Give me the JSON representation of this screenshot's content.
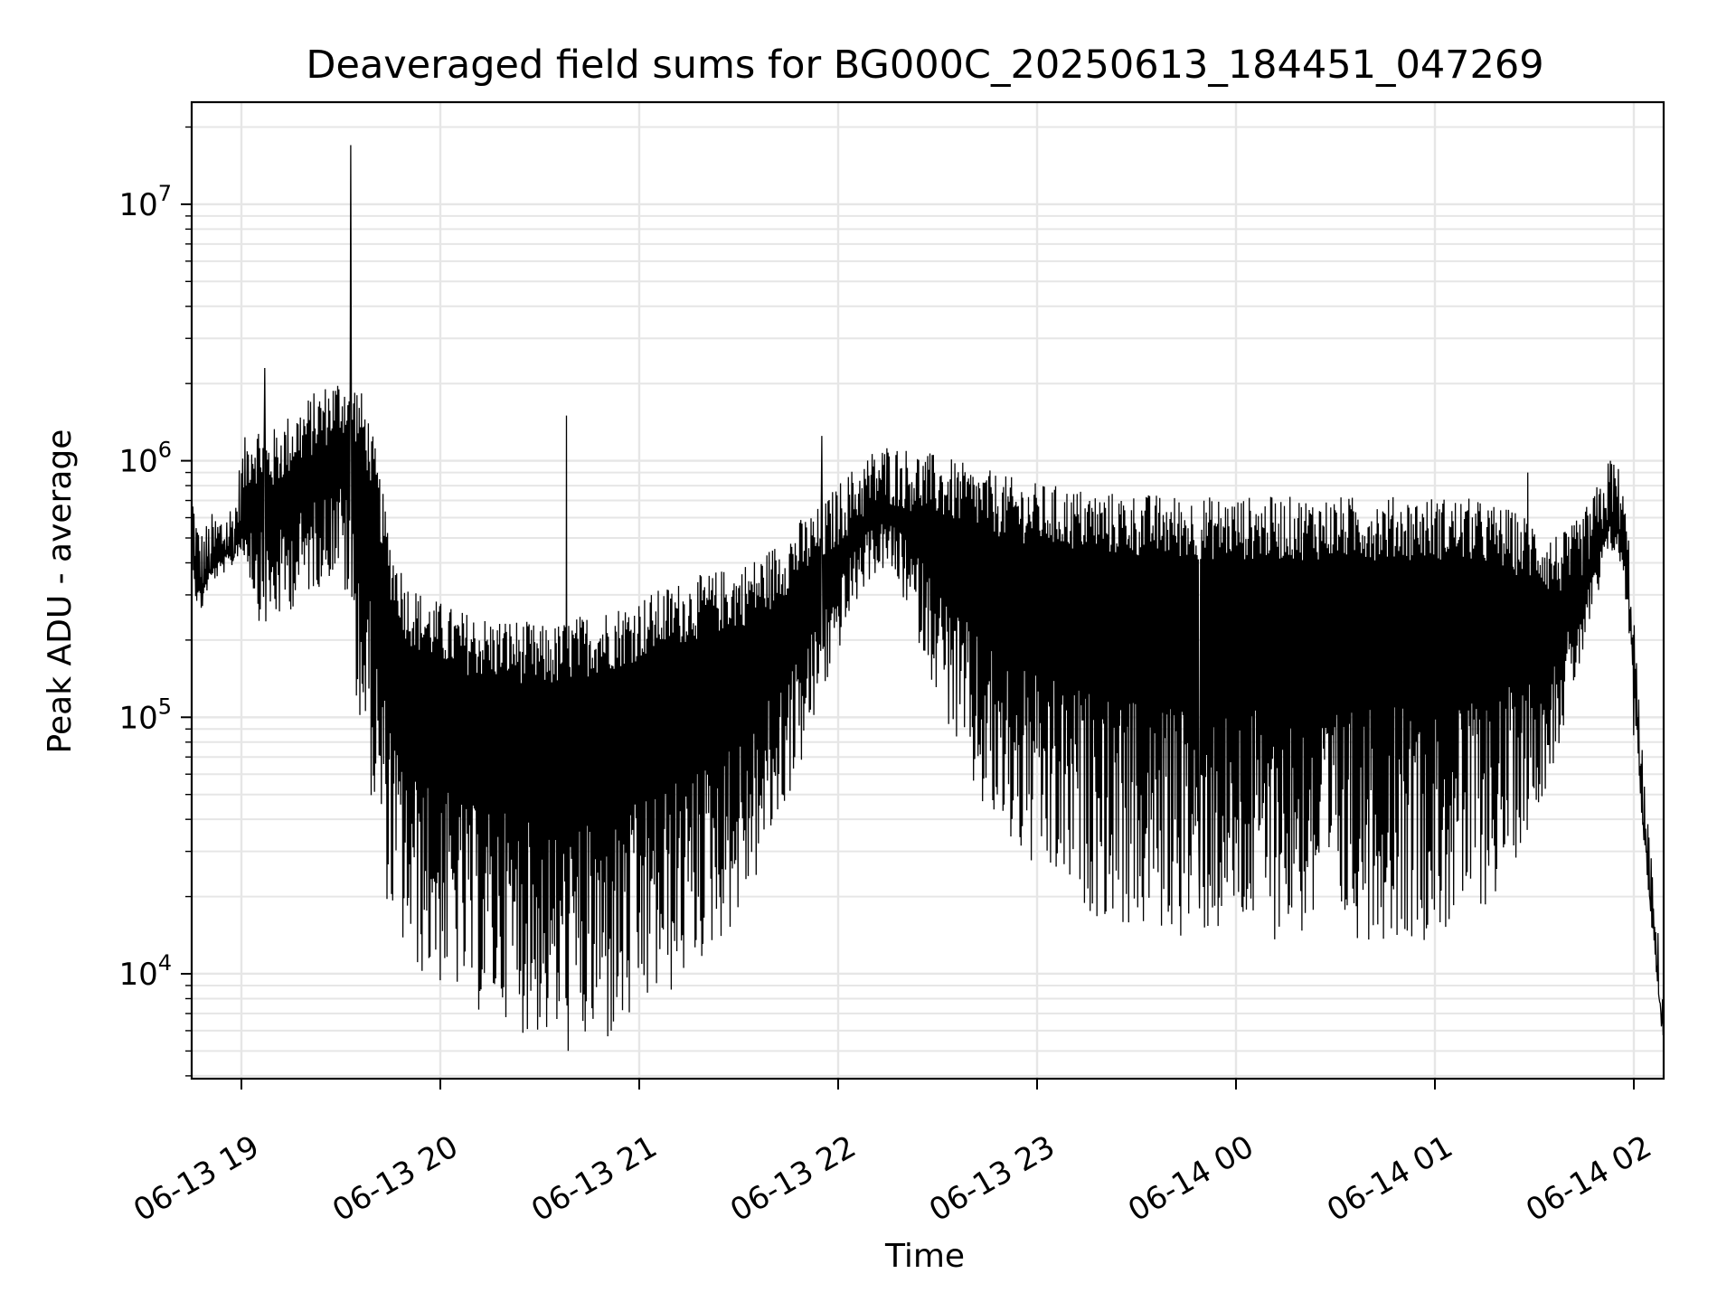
{
  "chart_data": {
    "type": "line",
    "title": "Deaveraged field sums for BG000C_20250613_184451_047269",
    "xlabel": "Time",
    "ylabel": "Peak ADU - average",
    "y_scale": "log",
    "ylim": [
      3900,
      25000000
    ],
    "xlim": [
      "06-13 18:45",
      "06-14 02:09"
    ],
    "grid": true,
    "line_color": "#000000",
    "grid_color": "#e6e6e6",
    "x_ticks": [
      {
        "t": "06-13 19:00",
        "label": "06-13 19"
      },
      {
        "t": "06-13 20:00",
        "label": "06-13 20"
      },
      {
        "t": "06-13 21:00",
        "label": "06-13 21"
      },
      {
        "t": "06-13 22:00",
        "label": "06-13 22"
      },
      {
        "t": "06-13 23:00",
        "label": "06-13 23"
      },
      {
        "t": "06-14 00:00",
        "label": "06-14 00"
      },
      {
        "t": "06-14 01:00",
        "label": "06-14 01"
      },
      {
        "t": "06-14 02:00",
        "label": "06-14 02"
      }
    ],
    "y_ticks": [
      {
        "value": 10000,
        "base": "10",
        "exp": "4"
      },
      {
        "value": 100000,
        "base": "10",
        "exp": "5"
      },
      {
        "value": 1000000,
        "base": "10",
        "exp": "6"
      },
      {
        "value": 10000000,
        "base": "10",
        "exp": "7"
      }
    ],
    "series": [
      {
        "x": [
          "06-13 18:45",
          "06-13 18:46",
          "06-13 18:47",
          "06-13 18:48",
          "06-13 18:49",
          "06-13 18:50",
          "06-13 18:51",
          "06-13 18:52",
          "06-13 18:53",
          "06-13 18:54",
          "06-13 18:55",
          "06-13 18:56",
          "06-13 18:57",
          "06-13 18:58",
          "06-13 18:59",
          "06-13 19:00",
          "06-13 19:01",
          "06-13 19:02",
          "06-13 19:03",
          "06-13 19:05",
          "06-13 19:07",
          "06-13 19:08",
          "06-13 19:10",
          "06-13 19:12",
          "06-13 19:14",
          "06-13 19:16",
          "06-13 19:18",
          "06-13 19:20",
          "06-13 19:22",
          "06-13 19:24",
          "06-13 19:26",
          "06-13 19:28",
          "06-13 19:30",
          "06-13 19:32",
          "06-13 19:34",
          "06-13 19:35",
          "06-13 19:37",
          "06-13 19:39",
          "06-13 19:41",
          "06-13 19:43",
          "06-13 19:45",
          "06-13 19:48",
          "06-13 19:50",
          "06-13 19:55",
          "06-13 20:00",
          "06-13 20:05",
          "06-13 20:10",
          "06-13 20:15",
          "06-13 20:20",
          "06-13 20:25",
          "06-13 20:30",
          "06-13 20:35",
          "06-13 20:40",
          "06-13 20:45",
          "06-13 20:50",
          "06-13 20:55",
          "06-13 21:00",
          "06-13 21:05",
          "06-13 21:10",
          "06-13 21:15",
          "06-13 21:20",
          "06-13 21:25",
          "06-13 21:30",
          "06-13 21:35",
          "06-13 21:40",
          "06-13 21:45",
          "06-13 21:50",
          "06-13 21:55",
          "06-13 22:00",
          "06-13 22:05",
          "06-13 22:10",
          "06-13 22:15",
          "06-13 22:20",
          "06-13 22:25",
          "06-13 22:30",
          "06-13 22:35",
          "06-13 22:40",
          "06-13 22:45",
          "06-13 22:50",
          "06-13 22:55",
          "06-13 23:00",
          "06-13 23:10",
          "06-13 23:20",
          "06-13 23:30",
          "06-13 23:40",
          "06-13 23:50",
          "06-14 00:00",
          "06-14 00:10",
          "06-14 00:20",
          "06-14 00:30",
          "06-14 00:40",
          "06-14 00:50",
          "06-14 01:00",
          "06-14 01:10",
          "06-14 01:20",
          "06-14 01:30",
          "06-14 01:35",
          "06-14 01:40",
          "06-14 01:45",
          "06-14 01:50",
          "06-14 01:52",
          "06-14 01:54",
          "06-14 01:56",
          "06-14 01:58",
          "06-14 02:00",
          "06-14 02:02",
          "06-14 02:04",
          "06-14 02:06",
          "06-14 02:08",
          "06-14 02:09"
        ],
        "base": [
          600000,
          450000,
          380000,
          360000,
          380000,
          400000,
          420000,
          430000,
          440000,
          450000,
          460000,
          470000,
          480000,
          500000,
          600000,
          700000,
          780000,
          840000,
          880000,
          850000,
          800000,
          760000,
          800000,
          850000,
          900000,
          950000,
          1000000,
          1050000,
          1100000,
          1150000,
          1200000,
          1250000,
          1300000,
          1250000,
          1150000,
          1050000,
          900000,
          700000,
          500000,
          350000,
          250000,
          200000,
          170000,
          150000,
          140000,
          130000,
          125000,
          120000,
          120000,
          115000,
          110000,
          110000,
          115000,
          120000,
          125000,
          130000,
          140000,
          150000,
          160000,
          170000,
          180000,
          190000,
          200000,
          220000,
          250000,
          300000,
          350000,
          400000,
          500000,
          600000,
          700000,
          750000,
          700000,
          650000,
          600000,
          550000,
          500000,
          470000,
          440000,
          420000,
          400000,
          380000,
          360000,
          350000,
          345000,
          340000,
          340000,
          340000,
          340000,
          340000,
          340000,
          340000,
          340000,
          340000,
          330000,
          320000,
          300000,
          320000,
          400000,
          550000,
          650000,
          700000,
          600000,
          400000,
          180000,
          60000,
          30000,
          15000,
          8000,
          5800
        ],
        "spread": [
          0.1,
          0.18,
          0.18,
          0.15,
          0.12,
          0.1,
          0.1,
          0.1,
          0.1,
          0.1,
          0.1,
          0.1,
          0.1,
          0.1,
          0.15,
          0.25,
          0.3,
          0.35,
          0.45,
          0.55,
          0.55,
          0.55,
          0.55,
          0.55,
          0.55,
          0.55,
          0.55,
          0.55,
          0.55,
          0.55,
          0.55,
          0.55,
          0.55,
          0.7,
          0.85,
          1.0,
          1.1,
          1.15,
          1.2,
          1.2,
          1.2,
          1.2,
          1.2,
          1.2,
          1.2,
          1.2,
          1.25,
          1.25,
          1.25,
          1.3,
          1.3,
          1.35,
          1.4,
          1.4,
          1.4,
          1.4,
          1.35,
          1.3,
          1.3,
          1.25,
          1.2,
          1.15,
          1.1,
          1.0,
          0.9,
          0.8,
          0.7,
          0.55,
          0.45,
          0.35,
          0.3,
          0.3,
          0.4,
          0.55,
          0.7,
          0.85,
          1.0,
          1.1,
          1.15,
          1.2,
          1.25,
          1.3,
          1.35,
          1.4,
          1.4,
          1.4,
          1.4,
          1.4,
          1.4,
          1.4,
          1.4,
          1.4,
          1.4,
          1.35,
          1.2,
          0.9,
          0.7,
          0.5,
          0.35,
          0.25,
          0.2,
          0.2,
          0.2,
          0.2,
          0.15,
          0.12,
          0.1,
          0.08,
          0.05,
          0.03
        ],
        "spikes": [
          {
            "t": "06-13 19:07",
            "v": 2300000
          },
          {
            "t": "06-13 19:33",
            "v": 17000000
          },
          {
            "t": "06-13 20:38",
            "v": 1500000
          },
          {
            "t": "06-13 21:55",
            "v": 1250000
          },
          {
            "t": "06-13 23:31",
            "v": 24000
          },
          {
            "t": "06-13 23:49",
            "v": 18000
          },
          {
            "t": "06-14 01:28",
            "v": 900000
          },
          {
            "t": "06-14 01:53",
            "v": 1000000
          },
          {
            "t": "06-14 02:00",
            "v": 85000
          }
        ]
      }
    ]
  }
}
